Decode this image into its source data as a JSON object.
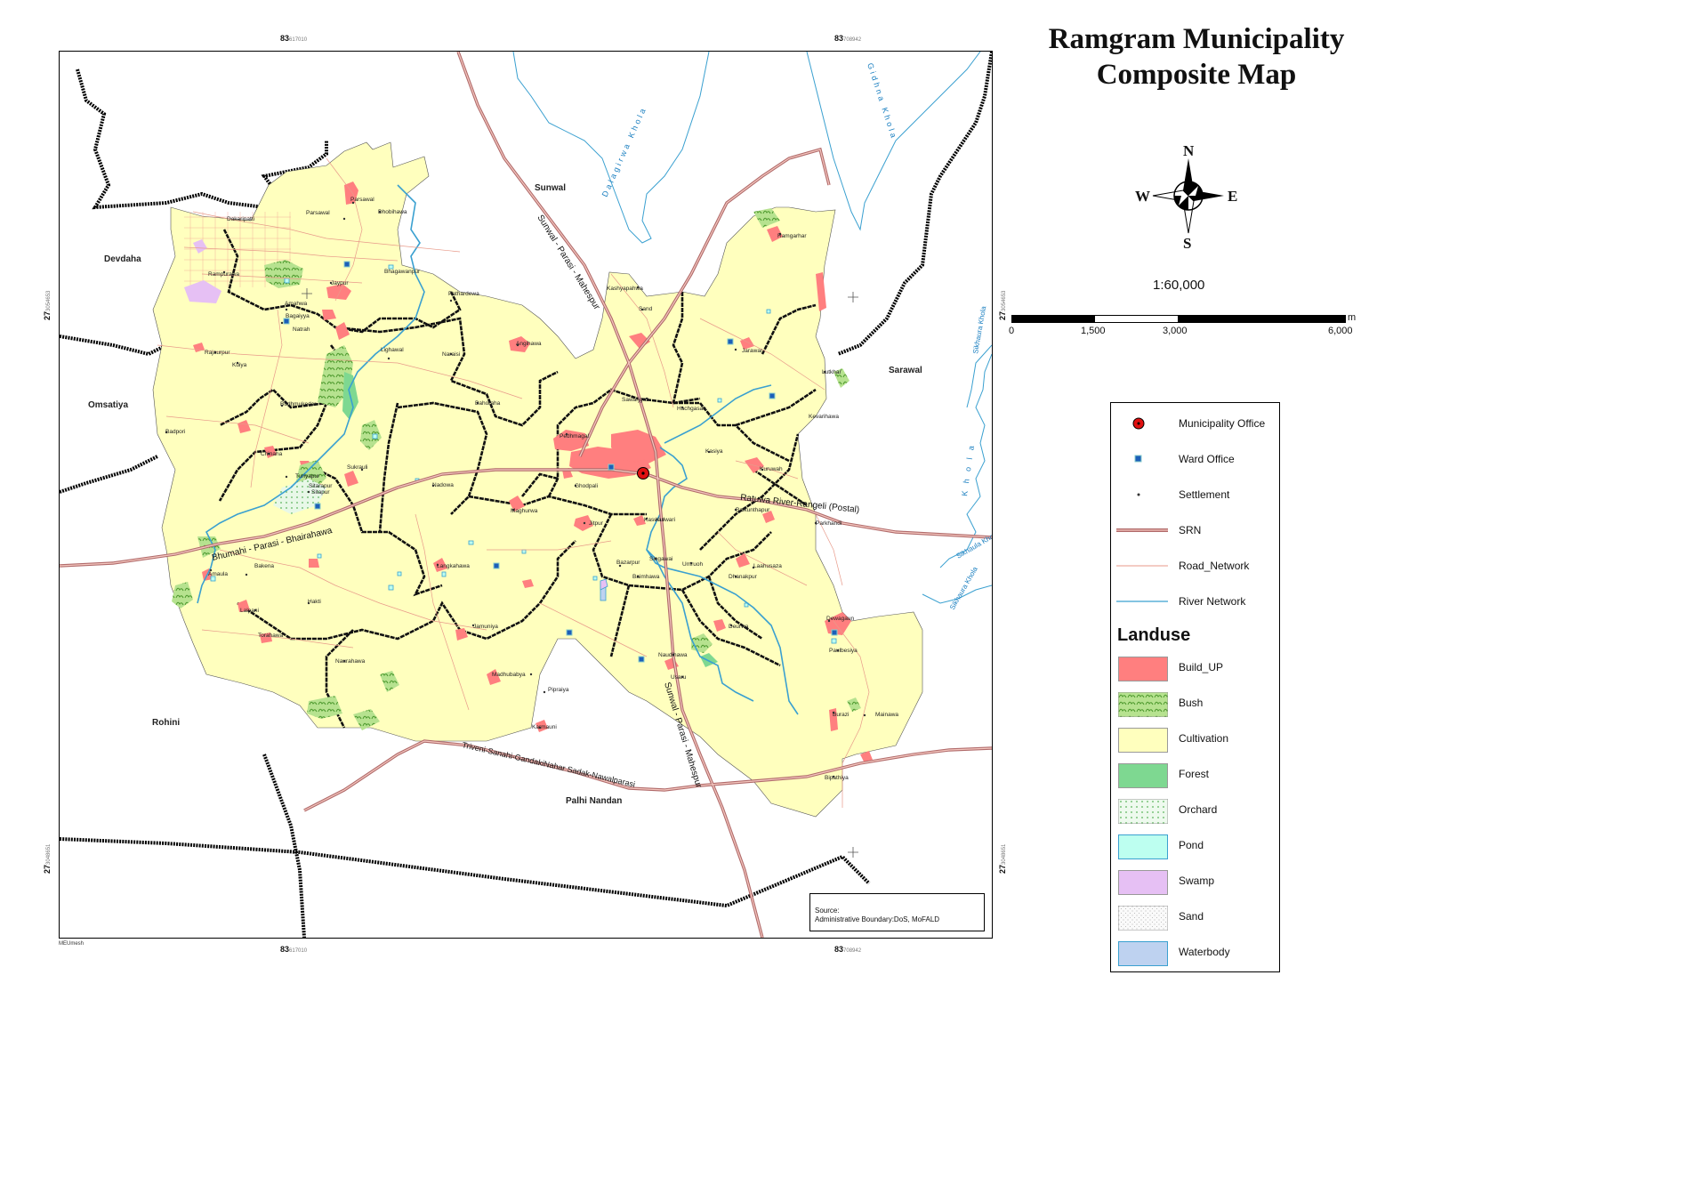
{
  "title": {
    "line1": "Ramgram Municipality",
    "line2": "Composite  Map"
  },
  "compass": {
    "n": "N",
    "s": "S",
    "e": "E",
    "w": "W"
  },
  "scale": {
    "ratio": "1:60,000",
    "unit": "m",
    "ticks": [
      "0",
      "1,500",
      "3,000",
      "6,000"
    ]
  },
  "coords": {
    "top_left": {
      "deg": "83",
      "min": "617010"
    },
    "top_right": {
      "deg": "83",
      "min": "708942"
    },
    "bottom_left": {
      "deg": "83",
      "min": "617010"
    },
    "bottom_right": {
      "deg": "83",
      "min": "708942"
    },
    "left_top": {
      "deg": "27",
      "min": "3054653"
    },
    "left_bottom": {
      "deg": "27",
      "min": "3048651"
    },
    "right_top": {
      "deg": "27",
      "min": "3054653"
    },
    "right_bottom": {
      "deg": "27",
      "min": "3048651"
    }
  },
  "neighbours": {
    "sunwal": "Sunwal",
    "devdaha": "Devdaha",
    "omsatiya": "Omsatiya",
    "rohini": "Rohini",
    "sarawal": "Sarawal",
    "palhi": "Palhi Nandan"
  },
  "roads": {
    "sunwal_parasi_north": "Sunwal - Parasi - Mahespur",
    "sunwal_parasi_south": "Sunwal - Parasi - Mahespur",
    "ratuwa": "Ratuwa  River-Rangeli  (Postal)",
    "bhumahi": "Bhumahi - Parasi - Bhairahawa",
    "triveni": "Triveni-Sanahi-GandakiNahar Sadak-Nawalparasi"
  },
  "rivers": {
    "dalagirwa": "Dalagirwa Khola",
    "gidhna": "Gidhna Khola",
    "sikhaura": "Sikhaura Khola",
    "sikhaula": "Sikhaula Khola",
    "sikhaura2": "Sikhaura Khola",
    "khola_east": "K h o l a"
  },
  "settlements": [
    "Parsawal",
    "Dakaripatti",
    "Parsawal",
    "Dhobihawa",
    "Rampurawa",
    "Amahwa",
    "Bhagawanpur",
    "Bagaiyya",
    "Natrah",
    "Pathardewa",
    "Angihawa",
    "Jaypur",
    "Kuiya",
    "Rajaurpur",
    "Lighawal",
    "Naraisi",
    "Bahoraha",
    "Budhmukedar",
    "Badpori",
    "Sitarapur",
    "Sukrauli",
    "Chinaha",
    "Turiyapur",
    "Sitapur",
    "Pedhmagal",
    "Ghodpali",
    "Maghurwa",
    "Nadowa",
    "Bakena",
    "Amaula",
    "Kurwari",
    "Langkahawa",
    "Hakti",
    "Lalpani",
    "Torahawa",
    "Naurahawa",
    "Jamuniya",
    "Madhubabya",
    "Pipraiya",
    "Karmauni",
    "Kashyapahwa",
    "Sand",
    "Sawarjgaz",
    "Hachgasan",
    "Jarawar",
    "Kasiya",
    "Ramgarhar",
    "Lutkhar",
    "Kevarihawa",
    "Kuruwah",
    "Baikunthapur",
    "Parkhandi",
    "Kaswari",
    "Jitpur",
    "Bazarpur",
    "Baimhawa",
    "Singawai",
    "Umruoh",
    "Laahusaza",
    "Dhanakpur",
    "Deurwa",
    "Naudihawa",
    "Usaru",
    "Dewagaun",
    "Paulbesiya",
    "Burazi",
    "Mainawa",
    "Bipathiya"
  ],
  "legend": {
    "items": [
      {
        "label": "Municipality Office"
      },
      {
        "label": "Ward Office"
      },
      {
        "label": "Settlement"
      },
      {
        "label": "SRN"
      },
      {
        "label": "Road_Network"
      },
      {
        "label": "River Network"
      }
    ],
    "landuse_title": "Landuse",
    "landuse": [
      {
        "label": "Build_UP",
        "color": "#ff7f7f"
      },
      {
        "label": "Bush",
        "color": "#9fd680"
      },
      {
        "label": "Cultivation",
        "color": "#ffffbe"
      },
      {
        "label": "Forest",
        "color": "#7ed891"
      },
      {
        "label": "Orchard",
        "color": "#d8f4d8"
      },
      {
        "label": "Pond",
        "color": "#bdfff0"
      },
      {
        "label": "Swamp",
        "color": "#e6c0f4"
      },
      {
        "label": "Sand",
        "color": "#f4f4f4"
      },
      {
        "label": "Waterbody",
        "color": "#bed2f0"
      }
    ]
  },
  "source": {
    "line1": "Source:",
    "line2": "Administrative Boundary:DoS, MoFALD"
  },
  "author": "MEUmesh"
}
